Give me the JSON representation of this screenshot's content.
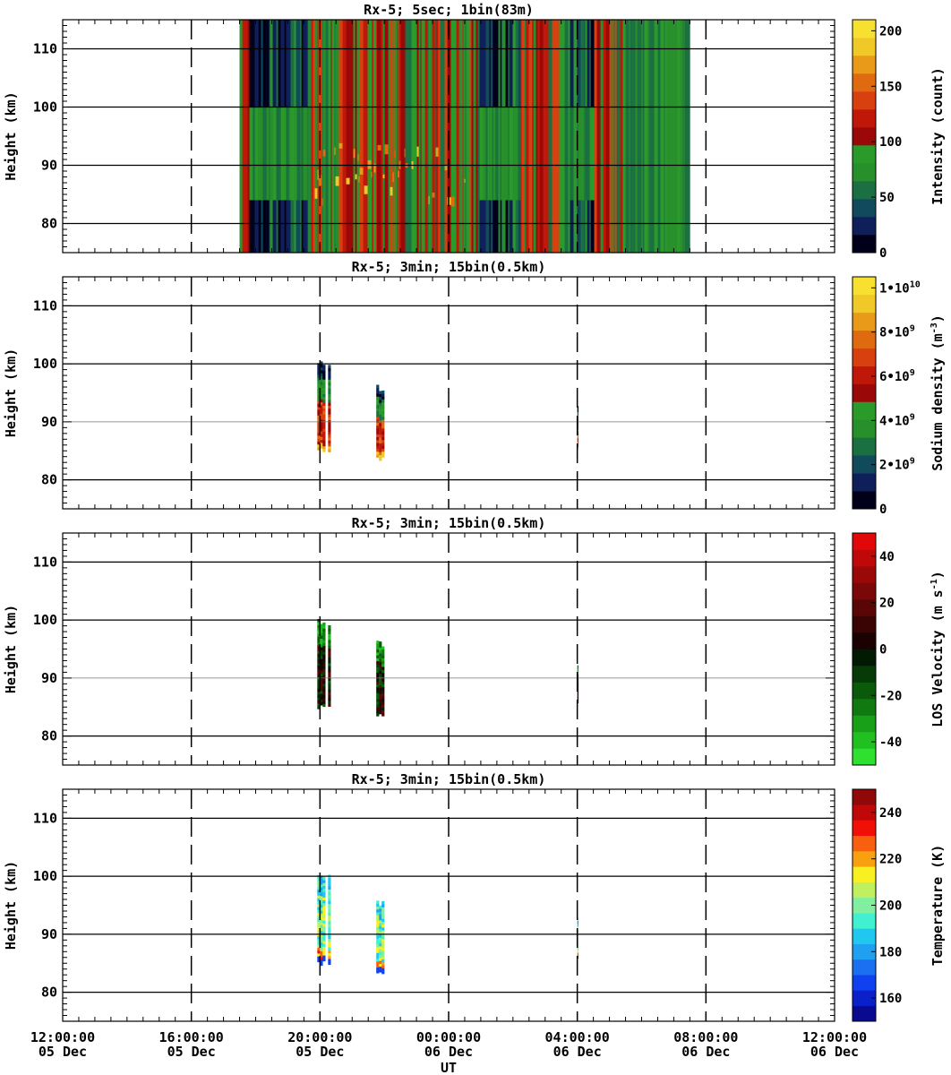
{
  "chart_data": [
    {
      "type": "heatmap",
      "title": "Rx-5;  5sec; 1bin(83m)",
      "xlabel": "UT",
      "ylabel": "Height (km)",
      "ylim": [
        75,
        115
      ],
      "xlim": [
        "12:00:00 05 Dec",
        "12:00:00 06 Dec"
      ],
      "yticks": [
        "80",
        "90",
        "100",
        "110"
      ],
      "data_extent": {
        "start": "17:30 05 Dec",
        "end": "07:30 06 Dec",
        "height_range_km": [
          75,
          115
        ]
      },
      "colorbar": {
        "label": "Intensity (count)",
        "range": [
          0,
          210
        ],
        "ticks": [
          "0",
          "50",
          "100",
          "150",
          "200"
        ],
        "colors": [
          "#00001a",
          "#0f1f5a",
          "#104a5c",
          "#1a7040",
          "#28902a",
          "#2a9a2a",
          "#9a0808",
          "#c01808",
          "#d84010",
          "#e06a10",
          "#e89a18",
          "#f0c828",
          "#f8e030"
        ]
      }
    },
    {
      "type": "heatmap",
      "title": "Rx-5; 3min; 15bin(0.5km)",
      "xlabel": "UT",
      "ylabel": "Height (km)",
      "ylim": [
        75,
        115
      ],
      "xlim": [
        "12:00:00 05 Dec",
        "12:00:00 06 Dec"
      ],
      "yticks": [
        "80",
        "90",
        "100",
        "110"
      ],
      "data_extent": [
        {
          "start": "19:55 05 Dec",
          "end": "20:20 05 Dec",
          "height_range_km": [
            84.5,
            100.5
          ]
        },
        {
          "start": "21:45 05 Dec",
          "end": "22:00 05 Dec",
          "height_range_km": [
            83,
            96.5
          ]
        },
        {
          "start": "04:00 06 Dec",
          "end": "04:02 06 Dec",
          "height_range_km": [
            85,
            93
          ]
        }
      ],
      "colorbar": {
        "label": "Sodium density",
        "label_unit": "(m",
        "label_unit_exp": "-3",
        "range": [
          0,
          10500000000.0
        ],
        "ticks": [
          {
            "base": "0",
            "exp": ""
          },
          {
            "base": "2•10",
            "exp": "9"
          },
          {
            "base": "4•10",
            "exp": "9"
          },
          {
            "base": "6•10",
            "exp": "9"
          },
          {
            "base": "8•10",
            "exp": "9"
          },
          {
            "base": "1•10",
            "exp": "10"
          }
        ],
        "colors": [
          "#00001a",
          "#0f1f5a",
          "#104a5c",
          "#1a7040",
          "#28902a",
          "#2a9a2a",
          "#9a0808",
          "#c01808",
          "#d84010",
          "#e06a10",
          "#e89a18",
          "#f0c828",
          "#f8e030"
        ]
      }
    },
    {
      "type": "heatmap",
      "title": "Rx-5; 3min; 15bin(0.5km)",
      "xlabel": "UT",
      "ylabel": "Height (km)",
      "ylim": [
        75,
        115
      ],
      "xlim": [
        "12:00:00 05 Dec",
        "12:00:00 06 Dec"
      ],
      "yticks": [
        "80",
        "90",
        "100",
        "110"
      ],
      "data_extent": [
        {
          "start": "19:55 05 Dec",
          "end": "20:20 05 Dec",
          "height_range_km": [
            84.5,
            100.5
          ]
        },
        {
          "start": "21:45 05 Dec",
          "end": "22:00 05 Dec",
          "height_range_km": [
            83,
            96.5
          ]
        },
        {
          "start": "04:00 06 Dec",
          "end": "04:02 06 Dec",
          "height_range_km": [
            85,
            93
          ]
        }
      ],
      "colorbar": {
        "label": "LOS Velocity",
        "label_unit": "(m s",
        "label_unit_exp": "-1",
        "range": [
          -50,
          50
        ],
        "ticks": [
          "-40",
          "-20",
          "0",
          "20",
          "40"
        ],
        "colors": [
          "#30e030",
          "#20c020",
          "#18a018",
          "#107a10",
          "#0a5a0a",
          "#063a06",
          "#021a02",
          "#1a0202",
          "#3a0404",
          "#5a0606",
          "#7a0808",
          "#9a0808",
          "#c00808",
          "#e00808"
        ]
      }
    },
    {
      "type": "heatmap",
      "title": "Rx-5; 3min; 15bin(0.5km)",
      "xlabel": "UT",
      "ylabel": "Height (km)",
      "ylim": [
        75,
        115
      ],
      "xlim": [
        "12:00:00 05 Dec",
        "12:00:00 06 Dec"
      ],
      "yticks": [
        "80",
        "90",
        "100",
        "110"
      ],
      "data_extent": [
        {
          "start": "19:55 05 Dec",
          "end": "20:20 05 Dec",
          "height_range_km": [
            84.5,
            100.5
          ]
        },
        {
          "start": "21:45 05 Dec",
          "end": "22:00 05 Dec",
          "height_range_km": [
            83,
            96.5
          ]
        },
        {
          "start": "04:00 06 Dec",
          "end": "04:02 06 Dec",
          "height_range_km": [
            85,
            93
          ]
        }
      ],
      "colorbar": {
        "label": "Temperature (K)",
        "range": [
          150,
          250
        ],
        "ticks": [
          "160",
          "180",
          "200",
          "220",
          "240"
        ],
        "colors": [
          "#0a0a90",
          "#0a20c8",
          "#1040f0",
          "#1a70f0",
          "#20a0f0",
          "#20c8f0",
          "#40f0d0",
          "#80f0a0",
          "#c0f060",
          "#f8f020",
          "#f8a010",
          "#f86010",
          "#f01008",
          "#c00808",
          "#900808"
        ]
      }
    }
  ],
  "xticks": [
    {
      "time": "12:00:00",
      "date": "05 Dec"
    },
    {
      "time": "16:00:00",
      "date": "05 Dec"
    },
    {
      "time": "20:00:00",
      "date": "05 Dec"
    },
    {
      "time": "00:00:00",
      "date": "06 Dec"
    },
    {
      "time": "04:00:00",
      "date": "06 Dec"
    },
    {
      "time": "08:00:00",
      "date": "06 Dec"
    },
    {
      "time": "12:00:00",
      "date": "06 Dec"
    }
  ]
}
